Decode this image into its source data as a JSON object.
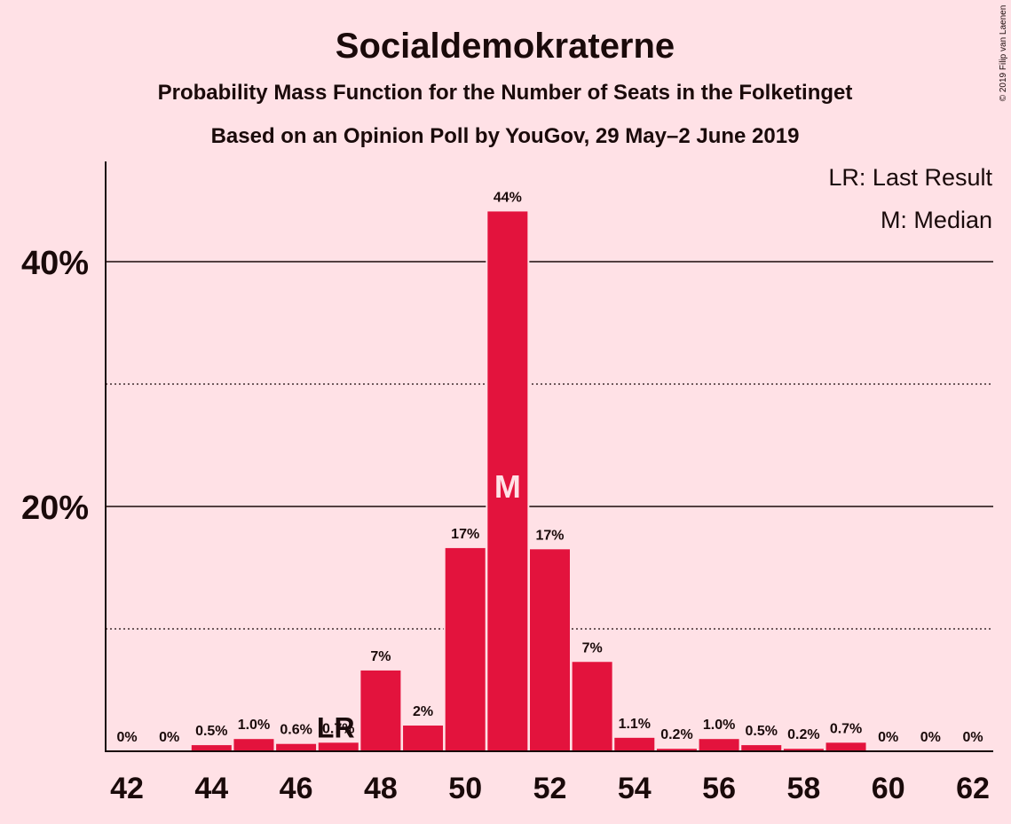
{
  "chart_data": {
    "type": "bar",
    "title": "Socialdemokraterne",
    "subtitle_1": "Probability Mass Function for the Number of Seats in the Folketinget",
    "subtitle_2": "Based on an Opinion Poll by YouGov, 29 May–2 June 2019",
    "copyright": "© 2019 Filip van Laenen",
    "legend": {
      "position": "top-right",
      "lr": "LR: Last Result",
      "median": "M: Median"
    },
    "x": [
      42,
      43,
      44,
      45,
      46,
      47,
      48,
      49,
      50,
      51,
      52,
      53,
      54,
      55,
      56,
      57,
      58,
      59,
      60,
      61,
      62
    ],
    "values": [
      0,
      0,
      0.5,
      1.0,
      0.6,
      0.7,
      6.6,
      2.1,
      16.6,
      44.1,
      16.5,
      7.3,
      1.1,
      0.2,
      1.0,
      0.5,
      0.2,
      0.7,
      0,
      0,
      0
    ],
    "data_labels": [
      "0%",
      "0%",
      "0.5%",
      "1.0%",
      "0.6%",
      "0.7%",
      "7%",
      "2%",
      "17%",
      "44%",
      "17%",
      "7%",
      "1.1%",
      "0.2%",
      "1.0%",
      "0.5%",
      "0.2%",
      "0.7%",
      "0%",
      "0%",
      "0%"
    ],
    "x_tick_labels": [
      "42",
      "44",
      "46",
      "48",
      "50",
      "52",
      "54",
      "56",
      "58",
      "60",
      "62"
    ],
    "y_tick_labels": [
      "20%",
      "40%"
    ],
    "ylim": [
      0,
      48
    ],
    "gridlines_solid": [
      20,
      40
    ],
    "gridlines_dotted": [
      10,
      30
    ],
    "last_result": {
      "seat": 47,
      "label": "LR"
    },
    "median": {
      "seat": 51,
      "label": "M"
    },
    "bar_color": "#e3133d",
    "background_color": "#ffe1e6"
  }
}
